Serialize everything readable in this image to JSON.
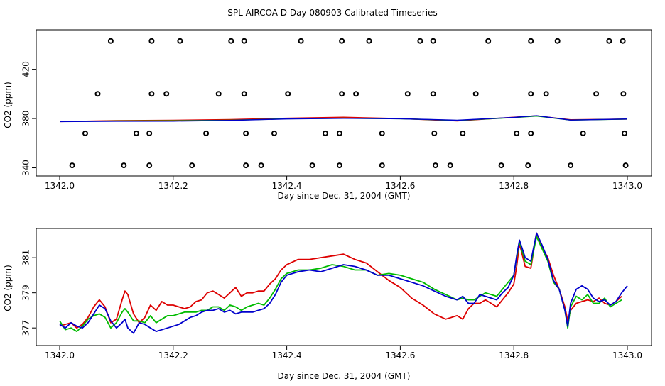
{
  "title": "SPL AIRCOA D  Day 080903  Calibrated Timeseries",
  "colors": {
    "red": "#dd0000",
    "green": "#00bb00",
    "blue": "#0000cc",
    "axis": "#000000"
  },
  "chart_data": [
    {
      "type": "scatter",
      "xlabel": "Day since Dec. 31, 2004 (GMT)",
      "ylabel": "CO2 (ppm)",
      "xlim": [
        1342.0,
        1343.0
      ],
      "ylim": [
        338,
        448
      ],
      "xticks": [
        1342.0,
        1342.2,
        1342.4,
        1342.6,
        1342.8,
        1343.0
      ],
      "xtick_labels": [
        "1342.0",
        "1342.2",
        "1342.4",
        "1342.6",
        "1342.8",
        "1343.0"
      ],
      "yticks": [
        340,
        380,
        420
      ],
      "ytick_labels": [
        "340",
        "380",
        "420"
      ],
      "markers": {
        "x": [
          1342.09,
          1342.162,
          1342.212,
          1342.302,
          1342.325,
          1342.425,
          1342.497,
          1342.545,
          1342.635,
          1342.658,
          1342.755,
          1342.83,
          1342.877,
          1342.968,
          1342.992,
          1342.067,
          1342.162,
          1342.188,
          1342.28,
          1342.325,
          1342.402,
          1342.497,
          1342.522,
          1342.613,
          1342.658,
          1342.733,
          1342.83,
          1342.857,
          1342.945,
          1342.993,
          1342.045,
          1342.135,
          1342.158,
          1342.258,
          1342.328,
          1342.378,
          1342.468,
          1342.493,
          1342.568,
          1342.66,
          1342.71,
          1342.805,
          1342.83,
          1342.922,
          1342.995,
          1342.022,
          1342.113,
          1342.158,
          1342.233,
          1342.328,
          1342.355,
          1342.445,
          1342.493,
          1342.568,
          1342.662,
          1342.688,
          1342.778,
          1342.825,
          1342.9,
          1342.997
        ],
        "y": [
          443,
          443,
          443,
          443,
          443,
          443,
          443,
          443,
          443,
          443,
          443,
          443,
          443,
          443,
          443,
          400,
          400,
          400,
          400,
          400,
          400,
          400,
          400,
          400,
          400,
          400,
          400,
          400,
          400,
          400,
          368,
          368,
          368,
          368,
          368,
          368,
          368,
          368,
          368,
          368,
          368,
          368,
          368,
          368,
          368,
          342,
          342,
          342,
          342,
          342,
          342,
          342,
          342,
          342,
          342,
          342,
          342,
          342,
          342,
          342
        ]
      },
      "series": [
        {
          "name": "red",
          "color": "#dd0000",
          "x": [
            1342.0,
            1342.1,
            1342.2,
            1342.3,
            1342.4,
            1342.5,
            1342.6,
            1342.7,
            1342.8,
            1342.84,
            1342.9,
            1343.0
          ],
          "y": [
            377.5,
            378.3,
            378.6,
            379.2,
            380.3,
            381.0,
            380.0,
            378.0,
            381.0,
            382.2,
            379.0,
            379.5
          ]
        },
        {
          "name": "green",
          "color": "#00bb00",
          "x": [
            1342.0,
            1342.1,
            1342.2,
            1342.3,
            1342.4,
            1342.5,
            1342.6,
            1342.7,
            1342.8,
            1342.84,
            1342.9,
            1343.0
          ],
          "y": [
            377.6,
            378.0,
            378.2,
            378.6,
            379.8,
            380.3,
            379.8,
            378.5,
            380.8,
            382.0,
            378.8,
            379.5
          ]
        },
        {
          "name": "blue",
          "color": "#0000cc",
          "x": [
            1342.0,
            1342.1,
            1342.2,
            1342.3,
            1342.4,
            1342.5,
            1342.6,
            1342.7,
            1342.8,
            1342.84,
            1342.9,
            1343.0
          ],
          "y": [
            377.5,
            377.8,
            377.9,
            378.5,
            379.7,
            380.2,
            379.8,
            378.6,
            380.9,
            382.3,
            378.8,
            379.6
          ]
        }
      ]
    },
    {
      "type": "line",
      "xlabel": "Day since Dec. 31, 2004 (GMT)",
      "ylabel": "CO2 (ppm)",
      "xlim": [
        1342.0,
        1343.0
      ],
      "ylim": [
        376.2,
        382.5
      ],
      "xticks": [
        1342.0,
        1342.2,
        1342.4,
        1342.6,
        1342.8,
        1343.0
      ],
      "xtick_labels": [
        "1342.0",
        "1342.2",
        "1342.4",
        "1342.6",
        "1342.8",
        "1343.0"
      ],
      "yticks": [
        377,
        379,
        381
      ],
      "ytick_labels": [
        "377",
        "379",
        "381"
      ],
      "series": [
        {
          "name": "red",
          "color": "#dd0000",
          "x": [
            1342.0,
            1342.01,
            1342.02,
            1342.03,
            1342.04,
            1342.05,
            1342.06,
            1342.07,
            1342.08,
            1342.09,
            1342.1,
            1342.11,
            1342.115,
            1342.12,
            1342.13,
            1342.14,
            1342.15,
            1342.16,
            1342.17,
            1342.18,
            1342.19,
            1342.2,
            1342.21,
            1342.22,
            1342.23,
            1342.24,
            1342.25,
            1342.26,
            1342.27,
            1342.28,
            1342.29,
            1342.3,
            1342.31,
            1342.32,
            1342.33,
            1342.34,
            1342.35,
            1342.36,
            1342.37,
            1342.38,
            1342.39,
            1342.4,
            1342.42,
            1342.44,
            1342.46,
            1342.48,
            1342.5,
            1342.52,
            1342.54,
            1342.56,
            1342.58,
            1342.6,
            1342.62,
            1342.64,
            1342.66,
            1342.68,
            1342.7,
            1342.71,
            1342.72,
            1342.73,
            1342.74,
            1342.75,
            1342.76,
            1342.77,
            1342.78,
            1342.79,
            1342.8,
            1342.805,
            1342.81,
            1342.82,
            1342.83,
            1342.84,
            1342.85,
            1342.86,
            1342.87,
            1342.88,
            1342.89,
            1342.895,
            1342.9,
            1342.91,
            1342.92,
            1342.93,
            1342.94,
            1342.95,
            1342.96,
            1342.97,
            1342.98,
            1342.99
          ],
          "y": [
            377.1,
            377.2,
            377.3,
            377.0,
            377.2,
            377.6,
            378.2,
            378.6,
            378.2,
            377.3,
            377.5,
            378.6,
            379.1,
            378.9,
            377.8,
            377.3,
            377.6,
            378.3,
            378.0,
            378.5,
            378.3,
            378.3,
            378.2,
            378.1,
            378.2,
            378.5,
            378.6,
            379.0,
            379.1,
            378.9,
            378.7,
            379.0,
            379.3,
            378.8,
            379.0,
            379.0,
            379.1,
            379.1,
            379.5,
            379.8,
            380.3,
            380.6,
            380.9,
            380.9,
            381.0,
            381.1,
            381.2,
            380.9,
            380.7,
            380.2,
            379.7,
            379.3,
            378.7,
            378.3,
            377.8,
            377.5,
            377.7,
            377.5,
            378.1,
            378.4,
            378.4,
            378.6,
            378.4,
            378.2,
            378.6,
            379.0,
            379.5,
            380.5,
            381.8,
            380.5,
            380.4,
            382.4,
            381.6,
            381.0,
            380.0,
            379.2,
            378.2,
            377.4,
            378.0,
            378.4,
            378.5,
            378.6,
            378.5,
            378.7,
            378.4,
            378.3,
            378.5,
            378.8
          ]
        },
        {
          "name": "green",
          "color": "#00bb00",
          "x": [
            1342.0,
            1342.01,
            1342.02,
            1342.03,
            1342.04,
            1342.05,
            1342.06,
            1342.07,
            1342.08,
            1342.09,
            1342.1,
            1342.11,
            1342.115,
            1342.12,
            1342.13,
            1342.14,
            1342.15,
            1342.16,
            1342.17,
            1342.18,
            1342.19,
            1342.2,
            1342.21,
            1342.22,
            1342.23,
            1342.24,
            1342.25,
            1342.26,
            1342.27,
            1342.28,
            1342.29,
            1342.3,
            1342.31,
            1342.32,
            1342.33,
            1342.34,
            1342.35,
            1342.36,
            1342.37,
            1342.38,
            1342.39,
            1342.4,
            1342.42,
            1342.44,
            1342.46,
            1342.48,
            1342.5,
            1342.52,
            1342.54,
            1342.56,
            1342.58,
            1342.6,
            1342.62,
            1342.64,
            1342.66,
            1342.68,
            1342.7,
            1342.71,
            1342.72,
            1342.73,
            1342.74,
            1342.75,
            1342.76,
            1342.77,
            1342.78,
            1342.79,
            1342.8,
            1342.805,
            1342.81,
            1342.82,
            1342.83,
            1342.84,
            1342.85,
            1342.86,
            1342.87,
            1342.88,
            1342.89,
            1342.895,
            1342.9,
            1342.91,
            1342.92,
            1342.93,
            1342.94,
            1342.95,
            1342.96,
            1342.97,
            1342.98,
            1342.99
          ],
          "y": [
            377.4,
            376.9,
            377.0,
            376.8,
            377.1,
            377.5,
            377.7,
            377.8,
            377.6,
            377.0,
            377.3,
            377.9,
            378.1,
            377.9,
            377.4,
            377.4,
            377.3,
            377.7,
            377.3,
            377.5,
            377.7,
            377.7,
            377.8,
            377.9,
            377.9,
            377.9,
            378.0,
            378.0,
            378.2,
            378.2,
            378.0,
            378.3,
            378.2,
            378.0,
            378.2,
            378.3,
            378.4,
            378.3,
            378.7,
            379.2,
            379.8,
            380.1,
            380.3,
            380.3,
            380.4,
            380.6,
            380.5,
            380.3,
            380.3,
            380.0,
            380.1,
            380.0,
            379.8,
            379.6,
            379.2,
            378.9,
            378.6,
            378.7,
            378.6,
            378.6,
            378.8,
            379.0,
            378.9,
            378.8,
            379.2,
            379.6,
            380.0,
            381.0,
            381.9,
            380.8,
            380.6,
            382.2,
            381.5,
            380.8,
            379.6,
            379.2,
            378.0,
            377.0,
            378.2,
            378.8,
            378.6,
            378.9,
            378.4,
            378.4,
            378.7,
            378.2,
            378.4,
            378.6
          ]
        },
        {
          "name": "blue",
          "color": "#0000cc",
          "x": [
            1342.0,
            1342.01,
            1342.02,
            1342.03,
            1342.04,
            1342.05,
            1342.06,
            1342.07,
            1342.08,
            1342.09,
            1342.1,
            1342.11,
            1342.115,
            1342.12,
            1342.13,
            1342.14,
            1342.15,
            1342.16,
            1342.17,
            1342.18,
            1342.19,
            1342.2,
            1342.21,
            1342.22,
            1342.23,
            1342.24,
            1342.25,
            1342.26,
            1342.27,
            1342.28,
            1342.29,
            1342.3,
            1342.31,
            1342.32,
            1342.33,
            1342.34,
            1342.35,
            1342.36,
            1342.37,
            1342.38,
            1342.39,
            1342.4,
            1342.42,
            1342.44,
            1342.46,
            1342.48,
            1342.5,
            1342.52,
            1342.54,
            1342.56,
            1342.58,
            1342.6,
            1342.62,
            1342.64,
            1342.66,
            1342.68,
            1342.7,
            1342.71,
            1342.72,
            1342.73,
            1342.74,
            1342.75,
            1342.76,
            1342.77,
            1342.78,
            1342.79,
            1342.8,
            1342.805,
            1342.81,
            1342.82,
            1342.83,
            1342.84,
            1342.85,
            1342.86,
            1342.87,
            1342.88,
            1342.89,
            1342.895,
            1342.9,
            1342.91,
            1342.92,
            1342.93,
            1342.94,
            1342.95,
            1342.96,
            1342.97,
            1342.98,
            1342.99,
            1343.0
          ],
          "y": [
            377.2,
            377.0,
            377.3,
            377.1,
            377.0,
            377.3,
            377.8,
            378.3,
            378.1,
            377.4,
            377.0,
            377.3,
            377.5,
            377.0,
            376.7,
            377.3,
            377.2,
            377.0,
            376.8,
            376.9,
            377.0,
            377.1,
            377.2,
            377.4,
            377.6,
            377.7,
            377.9,
            378.0,
            378.0,
            378.1,
            377.9,
            378.0,
            377.8,
            377.9,
            377.9,
            377.9,
            378.0,
            378.1,
            378.4,
            378.9,
            379.6,
            380.0,
            380.2,
            380.3,
            380.2,
            380.4,
            380.6,
            380.5,
            380.3,
            380.0,
            380.0,
            379.8,
            379.6,
            379.4,
            379.1,
            378.8,
            378.6,
            378.8,
            378.4,
            378.4,
            378.9,
            378.8,
            378.7,
            378.6,
            379.0,
            379.3,
            380.0,
            381.1,
            382.0,
            381.0,
            380.8,
            382.4,
            381.7,
            380.9,
            379.7,
            379.2,
            378.0,
            377.1,
            378.4,
            379.2,
            379.4,
            379.2,
            378.7,
            378.5,
            378.6,
            378.3,
            378.5,
            379.0,
            379.4
          ]
        }
      ]
    }
  ]
}
